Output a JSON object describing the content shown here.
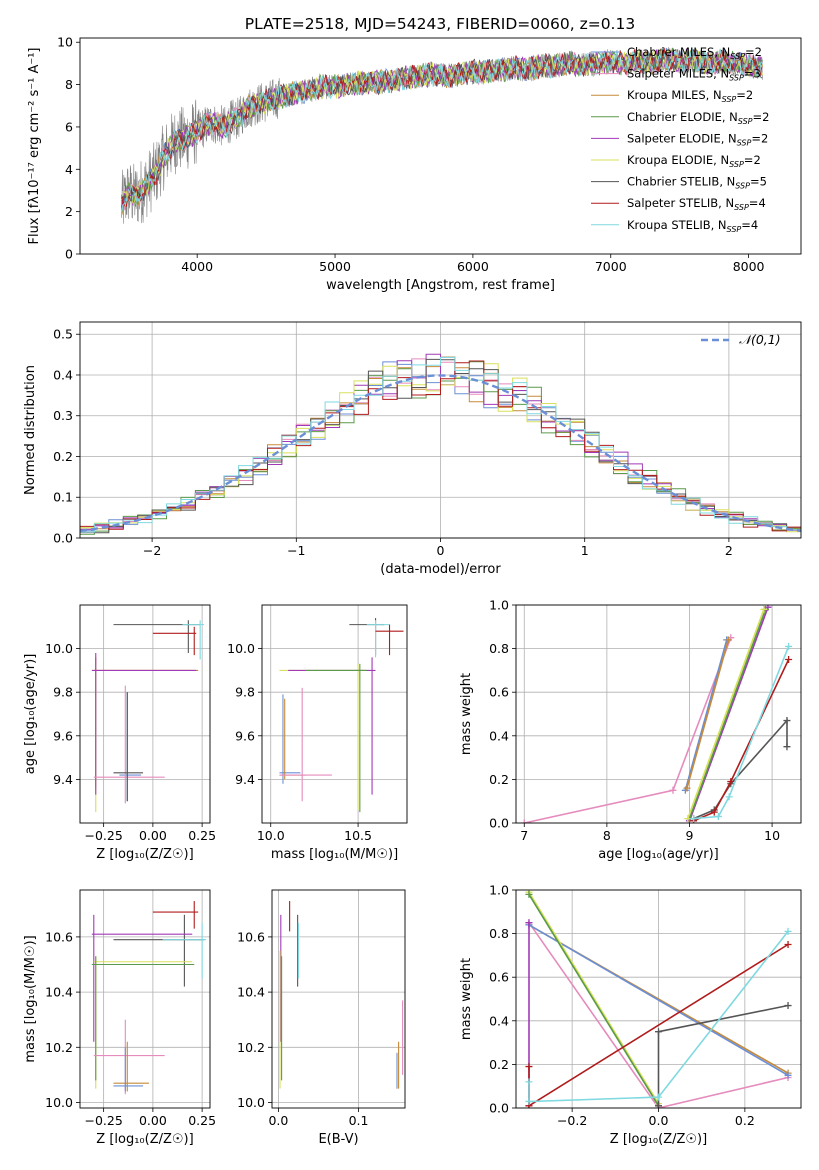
{
  "figure": {
    "title": "PLATE=2518, MJD=54243, FIBERID=0060, z=0.13"
  },
  "colors": {
    "Chabrier MILES": "#6b8fd6",
    "Salpeter MILES": "#e58bbd",
    "Kroupa MILES": "#c58a3a",
    "Chabrier ELODIE": "#5a9a4a",
    "Salpeter ELODIE": "#a23ab8",
    "Kroupa ELODIE": "#d8e05a",
    "Chabrier STELIB": "#555555",
    "Salpeter STELIB": "#b01c1c",
    "Kroupa STELIB": "#7fd9e0",
    "data": "#808080",
    "normal": "#6b8fd6",
    "grid": "#b0b0b0"
  },
  "chart_data": [
    {
      "id": "spectrum",
      "type": "line",
      "title": "PLATE=2518, MJD=54243, FIBERID=0060, z=0.13",
      "xlabel": "wavelength [Angstrom, rest frame]",
      "ylabel": "Flux [fλ10⁻¹⁷ erg cm⁻² s⁻¹ A⁻¹]",
      "xlim": [
        3150,
        8380
      ],
      "ylim": [
        0,
        10.2
      ],
      "xticks": [
        4000,
        5000,
        6000,
        7000,
        8000
      ],
      "yticks": [
        0,
        2,
        4,
        6,
        8,
        10
      ],
      "grid": false,
      "legend_position": "top-right",
      "legend": [
        {
          "label": "Chabrier MILES",
          "nssp": "2",
          "model": "Chabrier MILES"
        },
        {
          "label": "Salpeter MILES",
          "nssp": "3",
          "model": "Salpeter MILES"
        },
        {
          "label": "Kroupa MILES",
          "nssp": "2",
          "model": "Kroupa MILES"
        },
        {
          "label": "Chabrier ELODIE",
          "nssp": "2",
          "model": "Chabrier ELODIE"
        },
        {
          "label": "Salpeter ELODIE",
          "nssp": "2",
          "model": "Salpeter ELODIE"
        },
        {
          "label": "Kroupa ELODIE",
          "nssp": "2",
          "model": "Kroupa ELODIE"
        },
        {
          "label": "Chabrier STELIB",
          "nssp": "5",
          "model": "Chabrier STELIB"
        },
        {
          "label": "Salpeter STELIB",
          "nssp": "4",
          "model": "Salpeter STELIB"
        },
        {
          "label": "Kroupa STELIB",
          "nssp": "4",
          "model": "Kroupa STELIB"
        }
      ],
      "data_series": {
        "name": "",
        "x": [
          3450,
          3500,
          3550,
          3600,
          3650,
          3700,
          3750,
          3800,
          3850,
          3900,
          3950,
          4000,
          4050,
          4100,
          4150,
          4200,
          4250,
          4300,
          4350,
          4400,
          4450,
          4500,
          4600,
          4700,
          4800,
          4900,
          5000,
          5100,
          5200,
          5300,
          5400,
          5500,
          5600,
          5700,
          5800,
          5900,
          6000,
          6100,
          6200,
          6300,
          6400,
          6500,
          6600,
          6700,
          6800,
          6900,
          7000,
          7100,
          7200,
          7300,
          7400,
          7500,
          7600,
          7700,
          7800,
          7900,
          8000,
          8100
        ],
        "y": [
          2.3,
          2.9,
          2.7,
          3.0,
          3.4,
          3.8,
          4.5,
          5.0,
          5.4,
          5.4,
          5.6,
          5.8,
          6.0,
          6.2,
          6.1,
          6.0,
          6.3,
          6.4,
          6.8,
          7.0,
          7.1,
          7.2,
          7.4,
          7.6,
          7.7,
          7.9,
          7.9,
          8.0,
          8.1,
          8.1,
          8.2,
          8.3,
          8.4,
          8.5,
          8.4,
          8.5,
          8.6,
          8.6,
          8.7,
          8.8,
          8.7,
          8.9,
          8.9,
          9.0,
          8.9,
          9.0,
          9.1,
          9.0,
          9.1,
          9.0,
          9.2,
          9.1,
          9.2,
          9.0,
          9.1,
          9.0,
          8.9,
          8.8
        ]
      }
    },
    {
      "id": "residuals",
      "type": "histogram",
      "xlabel": "(data-model)/error",
      "ylabel": "Normed distribution",
      "xlim": [
        -2.5,
        2.5
      ],
      "ylim": [
        0,
        0.53
      ],
      "xticks": [
        -2,
        -1,
        0,
        1,
        2
      ],
      "xticklabels": [
        "−2",
        "−1",
        "0",
        "1",
        "2"
      ],
      "yticks": [
        0,
        0.1,
        0.2,
        0.3,
        0.4,
        0.5
      ],
      "yticklabels": [
        "0.0",
        "0.1",
        "0.2",
        "0.3",
        "0.4",
        "0.5"
      ],
      "grid": true,
      "legend_position": "top-right",
      "normal_label": "𝒩(0,1)",
      "bin_width": 0.1
    },
    {
      "id": "age-vs-Z",
      "type": "errorbar",
      "xlabel": "Z [log₁₀(Z/Z☉)]",
      "ylabel": "age  [log₁₀(age/yr)]",
      "xlim": [
        -0.37,
        0.29
      ],
      "ylim": [
        9.2,
        10.2
      ],
      "xticks": [
        -0.25,
        0.0,
        0.25
      ],
      "xticklabels": [
        "−0.25",
        "0.00",
        "0.25"
      ],
      "yticks": [
        9.4,
        9.6,
        9.8,
        10.0
      ],
      "yticklabels": [
        "9.4",
        "9.6",
        "9.8",
        "10.0"
      ],
      "grid": true
    },
    {
      "id": "age-vs-mass",
      "type": "errorbar",
      "xlabel": "mass [log₁₀(M/M☉)]",
      "ylabel": "",
      "xlim": [
        9.95,
        10.78
      ],
      "ylim": [
        9.2,
        10.2
      ],
      "xticks": [
        10.0,
        10.5
      ],
      "xticklabels": [
        "10.0",
        "10.5"
      ],
      "yticks": [
        9.4,
        9.6,
        9.8,
        10.0
      ],
      "yticklabels": [
        "9.4",
        "9.6",
        "9.8",
        "10.0"
      ],
      "grid": true
    },
    {
      "id": "mass-weight-vs-age",
      "type": "line",
      "xlabel": "age  [log₁₀(age/yr)]",
      "ylabel": "mass weight",
      "xlim": [
        6.9,
        10.35
      ],
      "ylim": [
        0,
        1.0
      ],
      "xticks": [
        7,
        8,
        9,
        10
      ],
      "xticklabels": [
        "7",
        "8",
        "9",
        "10"
      ],
      "yticks": [
        0,
        0.2,
        0.4,
        0.6,
        0.8,
        1.0
      ],
      "yticklabels": [
        "0.0",
        "0.2",
        "0.4",
        "0.6",
        "0.8",
        "1.0"
      ],
      "grid": true,
      "series": [
        {
          "model": "Salpeter MILES",
          "x": [
            7.0,
            8.8,
            9.5
          ],
          "y": [
            0.0,
            0.15,
            0.85
          ]
        },
        {
          "model": "Chabrier MILES",
          "x": [
            8.95,
            9.45
          ],
          "y": [
            0.15,
            0.84
          ]
        },
        {
          "model": "Kroupa MILES",
          "x": [
            8.97,
            9.47
          ],
          "y": [
            0.16,
            0.84
          ]
        },
        {
          "model": "Salpeter ELODIE",
          "x": [
            9.0,
            9.95
          ],
          "y": [
            0.01,
            0.99
          ]
        },
        {
          "model": "Chabrier ELODIE",
          "x": [
            9.0,
            9.92
          ],
          "y": [
            0.02,
            0.98
          ]
        },
        {
          "model": "Kroupa ELODIE",
          "x": [
            8.98,
            9.9
          ],
          "y": [
            0.02,
            0.98
          ]
        },
        {
          "model": "Chabrier STELIB",
          "x": [
            9.05,
            9.3,
            9.5,
            10.18,
            10.18
          ],
          "y": [
            0.02,
            0.06,
            0.18,
            0.47,
            0.35
          ]
        },
        {
          "model": "Salpeter STELIB",
          "x": [
            9.05,
            9.3,
            9.5,
            10.2
          ],
          "y": [
            0.01,
            0.05,
            0.19,
            0.75
          ]
        },
        {
          "model": "Kroupa STELIB",
          "x": [
            9.05,
            9.35,
            9.48,
            10.2
          ],
          "y": [
            0.02,
            0.03,
            0.12,
            0.81
          ]
        }
      ]
    },
    {
      "id": "mass-vs-Z",
      "type": "errorbar",
      "xlabel": "Z [log₁₀(Z/Z☉)]",
      "ylabel": "mass [log₁₀(M/M☉)]",
      "xlim": [
        -0.37,
        0.29
      ],
      "ylim": [
        9.98,
        10.77
      ],
      "xticks": [
        -0.25,
        0.0,
        0.25
      ],
      "xticklabels": [
        "−0.25",
        "0.00",
        "0.25"
      ],
      "yticks": [
        10.0,
        10.2,
        10.4,
        10.6
      ],
      "yticklabels": [
        "10.0",
        "10.2",
        "10.4",
        "10.6"
      ],
      "grid": true
    },
    {
      "id": "mass-vs-EBV",
      "type": "errorbar",
      "xlabel": "E(B-V)",
      "ylabel": "",
      "xlim": [
        -0.008,
        0.158
      ],
      "ylim": [
        9.98,
        10.77
      ],
      "xticks": [
        0.0,
        0.1
      ],
      "xticklabels": [
        "0.0",
        "0.1"
      ],
      "yticks": [
        10.0,
        10.2,
        10.4,
        10.6
      ],
      "yticklabels": [
        "10.0",
        "10.2",
        "10.4",
        "10.6"
      ],
      "grid": true
    },
    {
      "id": "mass-weight-vs-Z",
      "type": "line",
      "xlabel": "Z [log₁₀(Z/Z☉)]",
      "ylabel": "mass weight",
      "xlim": [
        -0.33,
        0.33
      ],
      "ylim": [
        0,
        1.0
      ],
      "xticks": [
        -0.2,
        0.0,
        0.2
      ],
      "xticklabels": [
        "−0.2",
        "0.0",
        "0.2"
      ],
      "yticks": [
        0,
        0.2,
        0.4,
        0.6,
        0.8,
        1.0
      ],
      "yticklabels": [
        "0.0",
        "0.2",
        "0.4",
        "0.6",
        "0.8",
        "1.0"
      ],
      "grid": true,
      "series": [
        {
          "model": "Salpeter MILES",
          "x": [
            -0.3,
            0.0,
            0.3
          ],
          "y": [
            0.85,
            0.0,
            0.14
          ]
        },
        {
          "model": "Kroupa MILES",
          "x": [
            -0.3,
            0.3
          ],
          "y": [
            0.84,
            0.16
          ]
        },
        {
          "model": "Chabrier MILES",
          "x": [
            -0.3,
            0.3
          ],
          "y": [
            0.84,
            0.15
          ]
        },
        {
          "model": "Kroupa ELODIE",
          "x": [
            -0.3,
            0.0
          ],
          "y": [
            0.99,
            0.02
          ]
        },
        {
          "model": "Chabrier ELODIE",
          "x": [
            -0.3,
            0.0
          ],
          "y": [
            0.98,
            0.01
          ]
        },
        {
          "model": "Salpeter ELODIE",
          "x": [
            -0.3,
            -0.3
          ],
          "y": [
            0.01,
            0.85
          ]
        },
        {
          "model": "Chabrier STELIB",
          "x": [
            0.0,
            0.0,
            0.3
          ],
          "y": [
            0.01,
            0.35,
            0.47
          ]
        },
        {
          "model": "Salpeter STELIB",
          "x": [
            -0.3,
            -0.3,
            0.3
          ],
          "y": [
            0.19,
            0.01,
            0.75
          ]
        },
        {
          "model": "Kroupa STELIB",
          "x": [
            -0.3,
            -0.3,
            0.0,
            0.3
          ],
          "y": [
            0.12,
            0.03,
            0.05,
            0.81
          ]
        }
      ]
    }
  ]
}
